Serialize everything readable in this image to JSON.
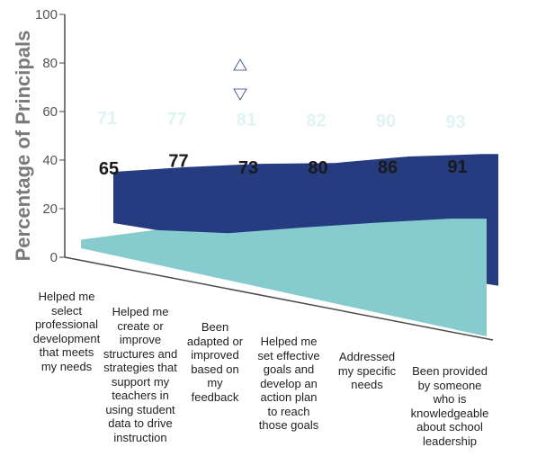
{
  "chart_data": {
    "type": "area",
    "ylabel": "Percentage of Principals",
    "ylim": [
      0,
      100
    ],
    "yticks": [
      "0",
      "20",
      "40",
      "60",
      "80",
      "100"
    ],
    "categories": [
      "Helped me\nselect\nprofessional\ndevelopment\nthat meets\nmy needs",
      "Helped me\ncreate or\nimprove\nstructures and\nstrategies that\nsupport my\nteachers in\nusing student\ndata to drive\ninstruction",
      "Been\nadapted or\nimproved\nbased on\nmy\nfeedback",
      "Helped me\nset effective\ngoals and\ndevelop an\naction plan\nto reach\nthose goals",
      "Addressed\nmy specific\nneeds",
      "Been provided\nby someone\nwho is\nknowledgeable\nabout school\nleadership"
    ],
    "series": [
      {
        "values": [
          71,
          77,
          81,
          82,
          90,
          93
        ],
        "labels": [
          "71",
          "77",
          "81",
          "82",
          "90",
          "93"
        ],
        "color": "#253c80"
      },
      {
        "values": [
          65,
          77,
          73,
          80,
          86,
          91
        ],
        "labels": [
          "65",
          "77",
          "73",
          "80",
          "86",
          "91"
        ],
        "color": "#86ccce"
      }
    ],
    "annotation": "double-headed arrow marking the gap between the two series at the third category",
    "grid": false,
    "legend": "none"
  }
}
